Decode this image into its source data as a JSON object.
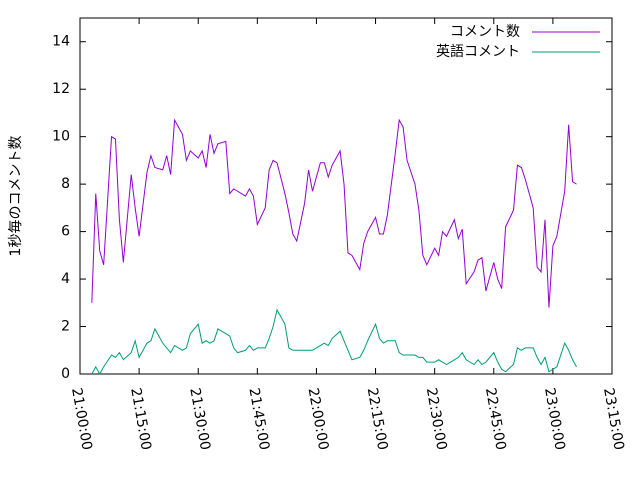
{
  "chart_data": {
    "type": "line",
    "y_label": "1秒毎のコメント数",
    "x": [
      "21:03:00",
      "21:04:00",
      "21:05:00",
      "21:06:00",
      "21:08:00",
      "21:09:00",
      "21:10:00",
      "21:11:00",
      "21:13:00",
      "21:14:00",
      "21:15:00",
      "21:17:00",
      "21:18:00",
      "21:19:00",
      "21:21:00",
      "21:22:00",
      "21:23:00",
      "21:24:00",
      "21:26:00",
      "21:27:00",
      "21:28:00",
      "21:30:00",
      "21:31:00",
      "21:32:00",
      "21:33:00",
      "21:34:00",
      "21:35:00",
      "21:37:00",
      "21:38:00",
      "21:39:00",
      "21:40:00",
      "21:42:00",
      "21:43:00",
      "21:44:00",
      "21:45:00",
      "21:47:00",
      "21:48:00",
      "21:49:00",
      "21:50:00",
      "21:52:00",
      "21:53:00",
      "21:54:00",
      "21:55:00",
      "21:57:00",
      "21:58:00",
      "21:59:00",
      "22:01:00",
      "22:02:00",
      "22:03:00",
      "22:04:00",
      "22:06:00",
      "22:07:00",
      "22:08:00",
      "22:09:00",
      "22:11:00",
      "22:12:00",
      "22:13:00",
      "22:15:00",
      "22:16:00",
      "22:17:00",
      "22:18:00",
      "22:20:00",
      "22:21:00",
      "22:22:00",
      "22:23:00",
      "22:25:00",
      "22:26:00",
      "22:27:00",
      "22:28:00",
      "22:30:00",
      "22:31:00",
      "22:32:00",
      "22:33:00",
      "22:35:00",
      "22:36:00",
      "22:37:00",
      "22:38:00",
      "22:40:00",
      "22:41:00",
      "22:42:00",
      "22:43:00",
      "22:45:00",
      "22:46:00",
      "22:47:00",
      "22:48:00",
      "22:50:00",
      "22:51:00",
      "22:52:00",
      "22:53:00",
      "22:55:00",
      "22:56:00",
      "22:57:00",
      "22:58:00",
      "22:59:00",
      "23:00:00",
      "23:01:00",
      "23:03:00",
      "23:04:00",
      "23:05:00",
      "23:06:00"
    ],
    "series": [
      {
        "name": "コメント数",
        "color": "#9400d3",
        "values": [
          3.0,
          7.6,
          5.2,
          4.6,
          10.0,
          9.9,
          6.5,
          4.7,
          8.4,
          7.0,
          5.8,
          8.5,
          9.2,
          8.7,
          8.6,
          9.2,
          8.4,
          10.7,
          10.1,
          9.0,
          9.4,
          9.1,
          9.4,
          8.7,
          10.1,
          9.3,
          9.7,
          9.8,
          7.6,
          7.8,
          7.7,
          7.5,
          7.8,
          7.5,
          6.3,
          7.0,
          8.6,
          9.0,
          8.9,
          7.6,
          6.8,
          5.9,
          5.6,
          7.2,
          8.6,
          7.7,
          8.9,
          8.9,
          8.3,
          8.8,
          9.4,
          8.0,
          5.1,
          5.0,
          4.4,
          5.5,
          6.0,
          6.6,
          5.9,
          5.9,
          6.7,
          9.3,
          10.7,
          10.4,
          9.0,
          8.0,
          6.9,
          5.0,
          4.6,
          5.3,
          5.0,
          6.0,
          5.8,
          6.5,
          5.7,
          6.1,
          3.8,
          4.3,
          4.8,
          4.9,
          3.5,
          4.7,
          4.0,
          3.6,
          6.2,
          6.9,
          8.8,
          8.7,
          8.2,
          7.0,
          4.5,
          4.3,
          6.5,
          2.8,
          5.4,
          5.8,
          7.7,
          10.5,
          8.1,
          8.0
        ]
      },
      {
        "name": "英語コメント",
        "color": "#009e73",
        "values": [
          0.0,
          0.3,
          0.0,
          0.3,
          0.8,
          0.7,
          0.9,
          0.6,
          0.9,
          1.4,
          0.7,
          1.3,
          1.4,
          1.9,
          1.3,
          1.1,
          0.9,
          1.2,
          1.0,
          1.1,
          1.7,
          2.1,
          1.3,
          1.4,
          1.3,
          1.4,
          1.9,
          1.7,
          1.6,
          1.1,
          0.9,
          1.0,
          1.2,
          1.0,
          1.1,
          1.1,
          1.5,
          2.0,
          2.7,
          2.1,
          1.1,
          1.0,
          1.0,
          1.0,
          1.0,
          1.0,
          1.2,
          1.3,
          1.2,
          1.5,
          1.8,
          1.4,
          1.0,
          0.6,
          0.7,
          1.0,
          1.4,
          2.1,
          1.5,
          1.3,
          1.4,
          1.4,
          0.9,
          0.8,
          0.8,
          0.8,
          0.7,
          0.7,
          0.5,
          0.5,
          0.6,
          0.5,
          0.4,
          0.6,
          0.7,
          0.9,
          0.6,
          0.4,
          0.6,
          0.4,
          0.5,
          0.9,
          0.5,
          0.2,
          0.1,
          0.4,
          1.1,
          1.0,
          1.1,
          1.1,
          0.7,
          0.4,
          0.7,
          0.1,
          0.2,
          0.3,
          1.3,
          1.0,
          0.6,
          0.3
        ]
      }
    ],
    "xlim": [
      "21:00:00",
      "23:15:00"
    ],
    "xticks": [
      "21:00:00",
      "21:15:00",
      "21:30:00",
      "21:45:00",
      "22:00:00",
      "22:15:00",
      "22:30:00",
      "22:45:00",
      "23:00:00",
      "23:15:00"
    ],
    "ylim": [
      0,
      15
    ],
    "yticks": [
      0,
      2,
      4,
      6,
      8,
      10,
      12,
      14
    ],
    "legend": "top-right"
  }
}
